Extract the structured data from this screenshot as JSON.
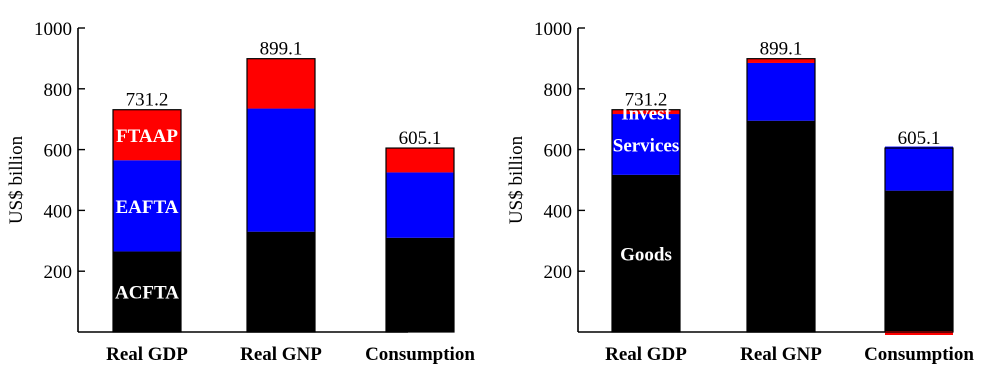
{
  "chart_data": [
    {
      "type": "bar",
      "stacked": true,
      "title": "",
      "xlabel": "",
      "ylabel": "US$ billion",
      "ylim": [
        0,
        1000
      ],
      "yticks": [
        200,
        400,
        600,
        800,
        1000
      ],
      "grid": false,
      "categories": [
        "Real GDP",
        "Real GNP",
        "Consumption"
      ],
      "totals": [
        731.2,
        899.1,
        605.1
      ],
      "total_labels": [
        "731.2",
        "899.1",
        "605.1"
      ],
      "series": [
        {
          "values": [
            265,
            330,
            310
          ],
          "color": "#000000"
        },
        {
          "values": [
            300,
            405,
            215
          ],
          "color": "#0000ff"
        },
        {
          "values": [
            166.2,
            164.1,
            80.1
          ],
          "color": "#ff0000"
        }
      ],
      "segment_labels": [
        "ACFTA",
        "EAFTA",
        "FTAAP"
      ]
    },
    {
      "type": "bar",
      "stacked": true,
      "title": "",
      "xlabel": "",
      "ylabel": "US$ billion",
      "ylim": [
        0,
        1000
      ],
      "yticks": [
        200,
        400,
        600,
        800,
        1000
      ],
      "grid": false,
      "categories": [
        "Real GDP",
        "Real GNP",
        "Consumption"
      ],
      "totals": [
        731.2,
        899.1,
        605.1
      ],
      "total_labels": [
        "731.2",
        "899.1",
        "605.1"
      ],
      "series": [
        {
          "values": [
            517,
            695,
            465
          ],
          "color": "#000000"
        },
        {
          "values": [
            200,
            190,
            145
          ],
          "color": "#0000ff"
        },
        {
          "values": [
            14.2,
            14.1,
            -5
          ],
          "color": "#ff0000"
        }
      ],
      "segment_labels": [
        "Goods",
        "Services",
        "Invest"
      ]
    }
  ]
}
